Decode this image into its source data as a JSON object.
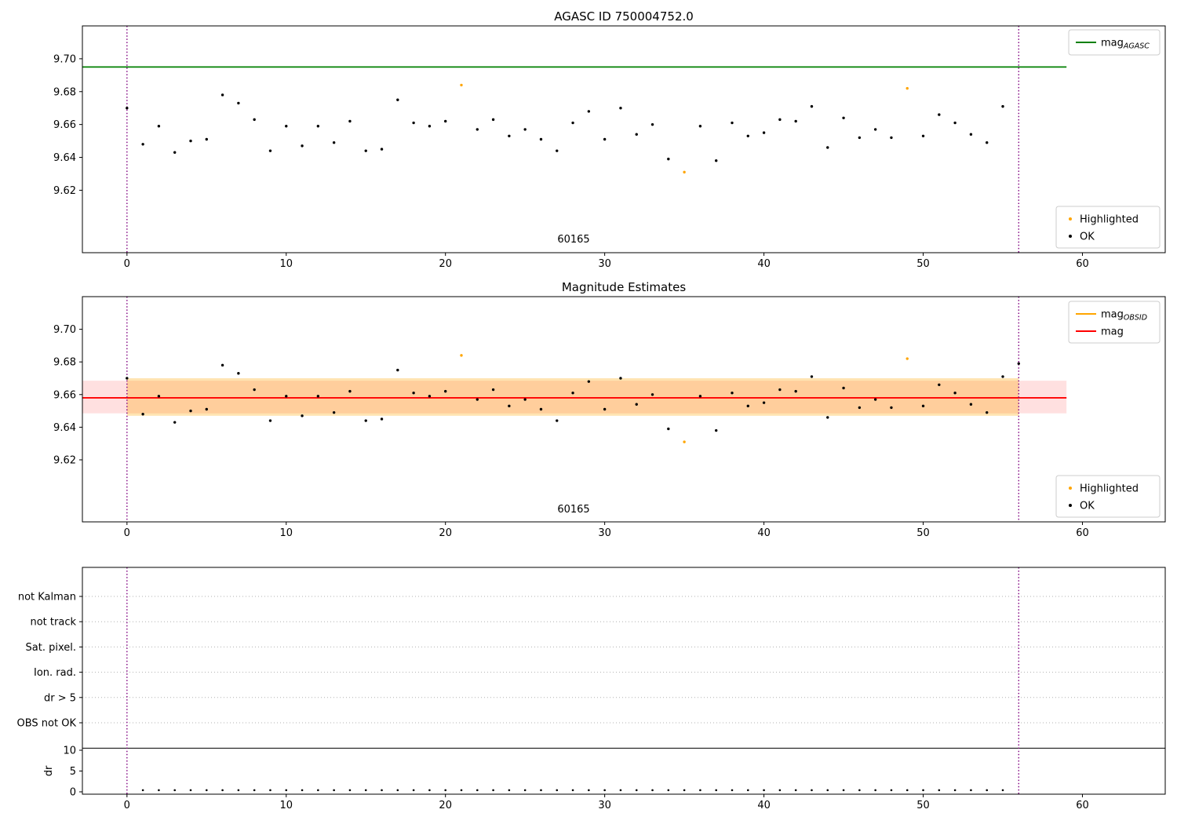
{
  "colors": {
    "agasc_line": "#008000",
    "highlight": "#FFA500",
    "mag_line": "#FF0000",
    "obsid_boundary": "#800080",
    "point": "#000000",
    "grid": "#b0b0b0",
    "band_mag": "#FF0000",
    "band_obsid": "#FFA500"
  },
  "chart_data": [
    {
      "type": "scatter",
      "title": "AGASC ID 750004752.0",
      "obsid_label": "60165",
      "xlim": [
        -2.8,
        65.2
      ],
      "ylim": [
        9.582,
        9.72
      ],
      "xticks": [
        0,
        10,
        20,
        30,
        40,
        50,
        60
      ],
      "yticks": [
        9.62,
        9.64,
        9.66,
        9.68,
        9.7
      ],
      "vlines": [
        0,
        56
      ],
      "hlines": [
        {
          "name": "mag-agasc-line",
          "label": "mag_AGASC",
          "value": 9.695,
          "color": "#008000",
          "x": [
            -2.8,
            59
          ]
        }
      ],
      "line_legend": [
        {
          "type": "line",
          "color": "#008000",
          "main": "mag",
          "sub": "AGASC"
        }
      ],
      "point_legend": [
        {
          "type": "dot",
          "color": "#FFA500",
          "label": "Highlighted"
        },
        {
          "type": "dot",
          "color": "#000000",
          "label": "OK"
        }
      ],
      "points": {
        "x": [
          0,
          1,
          2,
          3,
          4,
          5,
          6,
          7,
          8,
          9,
          10,
          11,
          12,
          13,
          14,
          15,
          16,
          17,
          18,
          19,
          20,
          21,
          22,
          23,
          24,
          25,
          26,
          27,
          28,
          29,
          30,
          31,
          32,
          33,
          34,
          35,
          36,
          37,
          38,
          39,
          40,
          41,
          42,
          43,
          44,
          45,
          46,
          47,
          48,
          49,
          50,
          51,
          52,
          53,
          54,
          55
        ],
        "y": [
          9.67,
          9.648,
          9.659,
          9.643,
          9.65,
          9.651,
          9.678,
          9.673,
          9.663,
          9.644,
          9.659,
          9.647,
          9.659,
          9.649,
          9.662,
          9.644,
          9.645,
          9.675,
          9.661,
          9.659,
          9.662,
          9.684,
          9.657,
          9.663,
          9.653,
          9.657,
          9.651,
          9.644,
          9.661,
          9.668,
          9.651,
          9.67,
          9.654,
          9.66,
          9.639,
          9.631,
          9.659,
          9.638,
          9.661,
          9.653,
          9.655,
          9.663,
          9.662,
          9.671,
          9.646,
          9.664,
          9.652,
          9.657,
          9.652,
          9.682,
          9.653,
          9.666,
          9.661,
          9.654,
          9.649,
          9.671
        ],
        "highlighted": [
          21,
          35,
          49
        ]
      }
    },
    {
      "type": "scatter",
      "title": "Magnitude Estimates",
      "obsid_label": "60165",
      "xlim": [
        -2.8,
        65.2
      ],
      "ylim": [
        9.582,
        9.72
      ],
      "xticks": [
        0,
        10,
        20,
        30,
        40,
        50,
        60
      ],
      "yticks": [
        9.62,
        9.64,
        9.66,
        9.68,
        9.7
      ],
      "vlines": [
        0,
        56
      ],
      "bands": [
        {
          "name": "mag",
          "x": [
            -2.8,
            59
          ],
          "y": [
            9.6485,
            9.6685
          ],
          "color": "#FF0000",
          "alpha": 0.12
        },
        {
          "name": "mag-obsid",
          "x": [
            0,
            56
          ],
          "y": [
            9.647,
            9.67
          ],
          "color": "#FFA500",
          "alpha": 0.3
        }
      ],
      "hlines": [
        {
          "name": "mag-line",
          "label": "mag",
          "value": 9.658,
          "color": "#FF0000",
          "x": [
            -2.8,
            59
          ]
        }
      ],
      "line_legend": [
        {
          "type": "line",
          "color": "#FFA500",
          "main": "mag",
          "sub": "OBSID"
        },
        {
          "type": "line",
          "color": "#FF0000",
          "main": "mag",
          "sub": ""
        }
      ],
      "point_legend": [
        {
          "type": "dot",
          "color": "#FFA500",
          "label": "Highlighted"
        },
        {
          "type": "dot",
          "color": "#000000",
          "label": "OK"
        }
      ],
      "points": {
        "x": [
          0,
          1,
          2,
          3,
          4,
          5,
          6,
          7,
          8,
          9,
          10,
          11,
          12,
          13,
          14,
          15,
          16,
          17,
          18,
          19,
          20,
          21,
          22,
          23,
          24,
          25,
          26,
          27,
          28,
          29,
          30,
          31,
          32,
          33,
          34,
          35,
          36,
          37,
          38,
          39,
          40,
          41,
          42,
          43,
          44,
          45,
          46,
          47,
          48,
          49,
          50,
          51,
          52,
          53,
          54,
          55,
          56
        ],
        "y": [
          9.67,
          9.648,
          9.659,
          9.643,
          9.65,
          9.651,
          9.678,
          9.673,
          9.663,
          9.644,
          9.659,
          9.647,
          9.659,
          9.649,
          9.662,
          9.644,
          9.645,
          9.675,
          9.661,
          9.659,
          9.662,
          9.684,
          9.657,
          9.663,
          9.653,
          9.657,
          9.651,
          9.644,
          9.661,
          9.668,
          9.651,
          9.67,
          9.654,
          9.66,
          9.639,
          9.631,
          9.659,
          9.638,
          9.661,
          9.653,
          9.655,
          9.663,
          9.662,
          9.671,
          9.646,
          9.664,
          9.652,
          9.657,
          9.652,
          9.682,
          9.653,
          9.666,
          9.661,
          9.654,
          9.649,
          9.671,
          9.679
        ],
        "highlighted": [
          21,
          35,
          49
        ]
      }
    },
    {
      "type": "flags",
      "flag_labels": [
        "not Kalman",
        "not track",
        "Sat. pixel.",
        "Ion. rad.",
        "dr > 5",
        "OBS not OK"
      ],
      "dr_label": "dr",
      "dr_ticks": [
        0,
        5,
        10
      ],
      "dr_top_line": 10.5,
      "xlim": [
        -2.8,
        65.2
      ],
      "xticks": [
        0,
        10,
        20,
        30,
        40,
        50,
        60
      ],
      "vlines": [
        0,
        56
      ],
      "dr_points": {
        "x": [
          1,
          2,
          3,
          4,
          5,
          6,
          7,
          8,
          9,
          10,
          11,
          12,
          13,
          14,
          15,
          16,
          17,
          18,
          19,
          20,
          21,
          22,
          23,
          24,
          25,
          26,
          27,
          28,
          29,
          30,
          31,
          32,
          33,
          34,
          35,
          36,
          37,
          38,
          39,
          40,
          41,
          42,
          43,
          44,
          45,
          46,
          47,
          48,
          49,
          50,
          51,
          52,
          53,
          54,
          55
        ],
        "value": 0.4
      }
    }
  ]
}
